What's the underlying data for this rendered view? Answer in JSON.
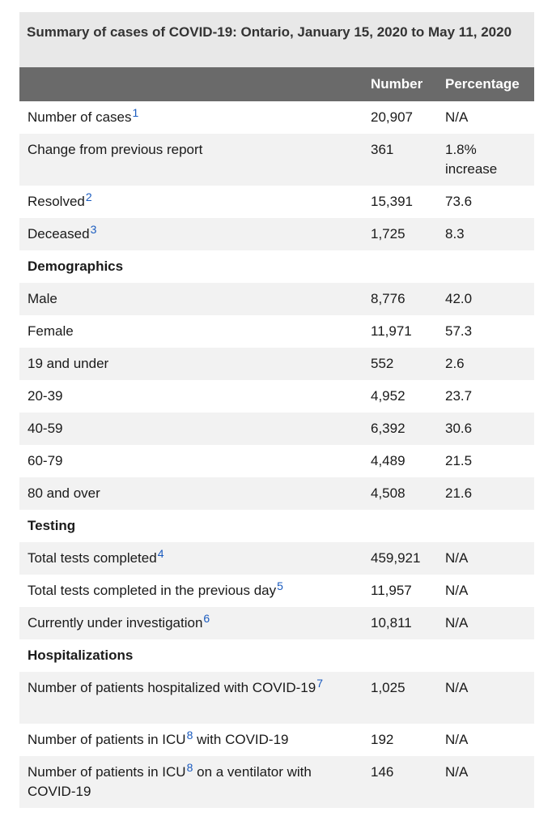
{
  "caption": "Summary of cases of COVID-19: Ontario, January 15, 2020 to May 11, 2020",
  "headers": {
    "label": "",
    "number": "Number",
    "percentage": "Percentage"
  },
  "rows": [
    {
      "label": "Number of cases",
      "sup": "1",
      "number": "20,907",
      "percentage": "N/A"
    },
    {
      "label": "Change from previous report",
      "sup": "",
      "number": "361",
      "percentage": "1.8% increase"
    },
    {
      "label": "Resolved",
      "sup": "2",
      "number": "15,391",
      "percentage": "73.6"
    },
    {
      "label": "Deceased",
      "sup": "3",
      "number": "1,725",
      "percentage": "8.3"
    },
    {
      "section": "Demographics"
    },
    {
      "label": "Male",
      "sup": "",
      "number": "8,776",
      "percentage": "42.0"
    },
    {
      "label": "Female",
      "sup": "",
      "number": "11,971",
      "percentage": "57.3"
    },
    {
      "label": "19 and under",
      "sup": "",
      "number": "552",
      "percentage": "2.6"
    },
    {
      "label": "20-39",
      "sup": "",
      "number": "4,952",
      "percentage": "23.7"
    },
    {
      "label": "40-59",
      "sup": "",
      "number": "6,392",
      "percentage": "30.6"
    },
    {
      "label": "60-79",
      "sup": "",
      "number": "4,489",
      "percentage": "21.5"
    },
    {
      "label": "80 and over",
      "sup": "",
      "number": "4,508",
      "percentage": "21.6"
    },
    {
      "section": "Testing"
    },
    {
      "label": "Total tests completed",
      "sup": "4",
      "number": "459,921",
      "percentage": "N/A"
    },
    {
      "label": "Total tests completed in the previous day",
      "sup": "5",
      "number": "11,957",
      "percentage": "N/A"
    },
    {
      "label": "Currently under investigation",
      "sup": "6",
      "number": "10,811",
      "percentage": "N/A"
    },
    {
      "section": "Hospitalizations"
    },
    {
      "label": "Number of patients hospitalized with COVID-19",
      "sup": "7",
      "number": "1,025",
      "percentage": "N/A"
    },
    {
      "label": "Number of patients in ICU",
      "sup": "8",
      "after": " with COVID-19",
      "number": "192",
      "percentage": "N/A"
    },
    {
      "label": "Number of patients in ICU",
      "sup": "8",
      "after": " on a ventilator with COVID-19",
      "number": "146",
      "percentage": "N/A"
    }
  ]
}
